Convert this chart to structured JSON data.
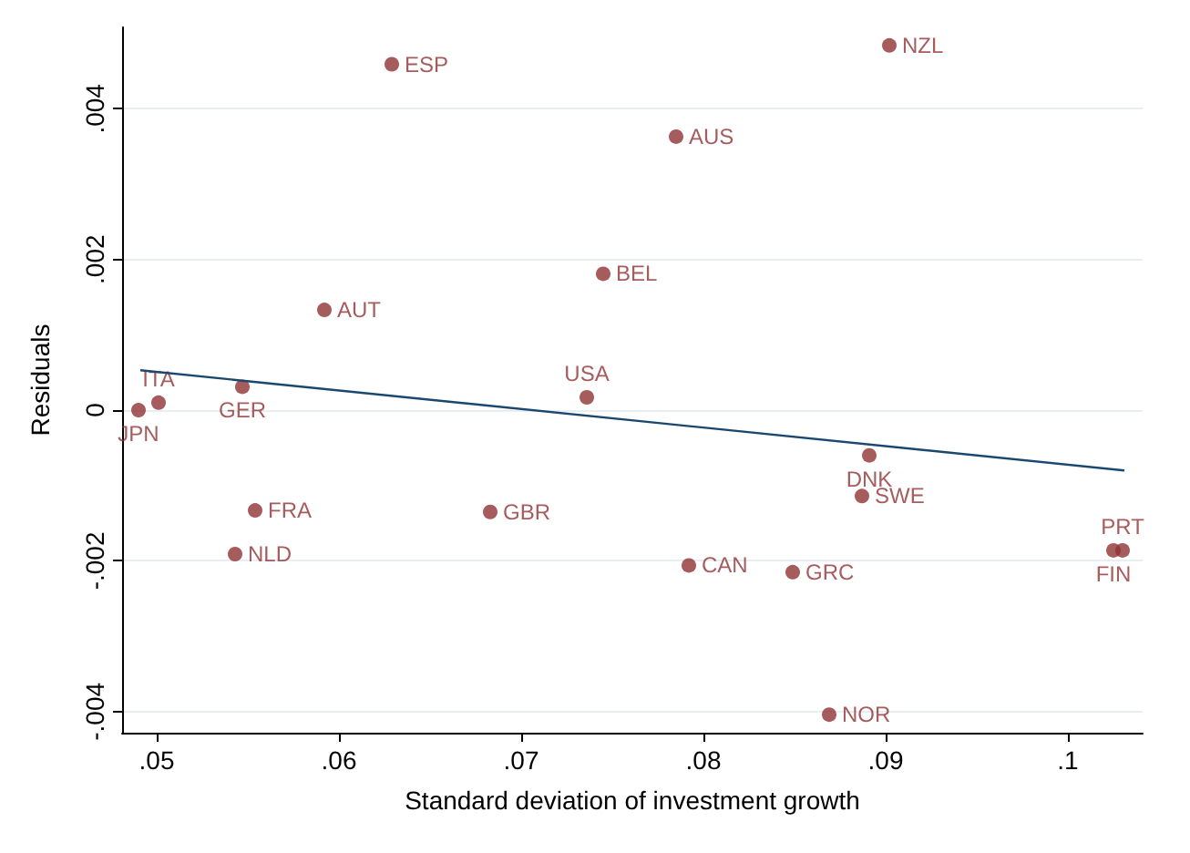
{
  "chart_data": {
    "type": "scatter",
    "xlabel": "Standard deviation of investment growth",
    "ylabel": "Residuals",
    "xlim": [
      0.0481,
      0.1041
    ],
    "xticks": [
      {
        "value": 0.05,
        "label": ".05"
      },
      {
        "value": 0.06,
        "label": ".06"
      },
      {
        "value": 0.07,
        "label": ".07"
      },
      {
        "value": 0.08,
        "label": ".08"
      },
      {
        "value": 0.09,
        "label": ".09"
      },
      {
        "value": 0.1,
        "label": ".1"
      }
    ],
    "ylim": [
      -0.00428,
      0.00508
    ],
    "yticks": [
      {
        "value": -0.004,
        "label": "-.004"
      },
      {
        "value": -0.002,
        "label": "-.002"
      },
      {
        "value": 0,
        "label": "0"
      },
      {
        "value": 0.002,
        "label": ".002"
      },
      {
        "value": 0.004,
        "label": ".004"
      }
    ],
    "grid": "y",
    "marker": "circle",
    "series": [
      {
        "color": "#903234",
        "x": [
          0.0629,
          0.0902,
          0.0785,
          0.0745,
          0.0592,
          0.0547,
          0.0736,
          0.0501,
          0.049,
          0.0891,
          0.0887,
          0.0554,
          0.0683,
          0.0543,
          0.0792,
          0.0849,
          0.0869,
          0.1025,
          0.103
        ],
        "values": [
          0.00459,
          0.00484,
          0.00363,
          0.00181,
          0.00133,
          0.00031,
          0.00017,
          0.0001,
          0,
          -0.0006,
          -0.00114,
          -0.00133,
          -0.00135,
          -0.00191,
          -0.00206,
          -0.00215,
          -0.00404,
          -0.00186,
          -0.00186
        ],
        "value_labels": [
          "ESP",
          "NZL",
          "AUS",
          "BEL",
          "AUT",
          "GER",
          "USA",
          "ITA",
          "JPN",
          "DNK",
          "SWE",
          "FRA",
          "GBR",
          "NLD",
          "CAN",
          "GRC",
          "NOR",
          "FIN",
          "PRT"
        ]
      },
      {
        "type": "line",
        "color": "#1a476f",
        "marker": "none",
        "line_style": "solid",
        "x": [
          0.0491,
          0.1031
        ],
        "values": [
          0.00053,
          -0.0008
        ]
      }
    ]
  }
}
